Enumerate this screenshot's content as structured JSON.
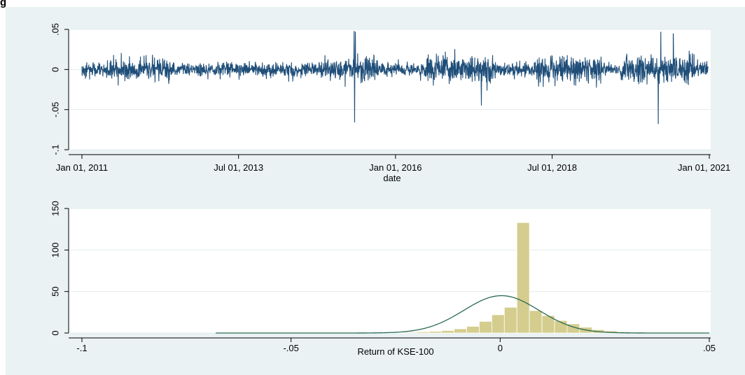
{
  "chart_data": [
    {
      "type": "line",
      "title": "",
      "xlabel": "date",
      "ylabel": "",
      "x_ticks": [
        "Jan 01, 2011",
        "Jul 01, 2013",
        "Jan 01, 2016",
        "Jul 01, 2018",
        "Jan 01, 2021"
      ],
      "y_ticks": [
        "-.1",
        "-.05",
        "0",
        ".05"
      ],
      "xlim": [
        "2011-01-01",
        "2021-01-01"
      ],
      "ylim": [
        -0.1,
        0.05
      ],
      "grid": true,
      "series_color": "#1f4e79",
      "key_points": [
        {
          "x": "2015-05-05",
          "y": 0.048
        },
        {
          "x": "2015-05-08",
          "y": -0.066
        },
        {
          "x": "2015-05-12",
          "y": 0.047
        },
        {
          "x": "2017-05-15",
          "y": -0.045
        },
        {
          "x": "2020-03-10",
          "y": -0.068
        },
        {
          "x": "2020-03-25",
          "y": 0.047
        },
        {
          "x": "2020-06-05",
          "y": 0.045
        }
      ]
    },
    {
      "type": "bar",
      "title": "",
      "xlabel": "Return of KSE-100",
      "ylabel": "",
      "x_ticks": [
        "-.1",
        "-.05",
        "0",
        ".05"
      ],
      "y_ticks": [
        "0",
        "50",
        "100",
        "150"
      ],
      "xlim": [
        -0.1,
        0.05
      ],
      "ylim": [
        0,
        150
      ],
      "grid": true,
      "bar_color": "#d4cd8e",
      "curve_color": "#2b6a52",
      "bins": [
        {
          "x": -0.0305,
          "value": 0.3
        },
        {
          "x": -0.0275,
          "value": 0.5
        },
        {
          "x": -0.0245,
          "value": 0.6
        },
        {
          "x": -0.0215,
          "value": 1
        },
        {
          "x": -0.0185,
          "value": 1.5
        },
        {
          "x": -0.0155,
          "value": 2
        },
        {
          "x": -0.0125,
          "value": 3
        },
        {
          "x": -0.0095,
          "value": 5
        },
        {
          "x": -0.0065,
          "value": 8
        },
        {
          "x": -0.0035,
          "value": 14
        },
        {
          "x": -0.0005,
          "value": 22
        },
        {
          "x": 0.0025,
          "value": 31
        },
        {
          "x": 0.0055,
          "value": 133
        },
        {
          "x": 0.0085,
          "value": 27
        },
        {
          "x": 0.0115,
          "value": 21
        },
        {
          "x": 0.0145,
          "value": 15
        },
        {
          "x": 0.0175,
          "value": 11
        },
        {
          "x": 0.0205,
          "value": 7
        },
        {
          "x": 0.0235,
          "value": 4
        },
        {
          "x": 0.0265,
          "value": 2.5
        },
        {
          "x": 0.0295,
          "value": 1.5
        },
        {
          "x": 0.0325,
          "value": 1
        }
      ],
      "normal_curve": {
        "mean": 0.0003,
        "sd": 0.009,
        "peak": 45
      }
    }
  ]
}
